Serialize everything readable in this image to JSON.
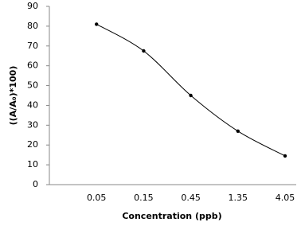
{
  "chart_data": {
    "type": "line",
    "smooth": true,
    "x_label": "Concentration (ppb)",
    "y_label": "((A/A₀)*100)",
    "categories": [
      "0.05",
      "0.15",
      "0.45",
      "1.35",
      "4.05"
    ],
    "series": [
      {
        "color": "#000000",
        "values": [
          81,
          67.5,
          45,
          27,
          14.5
        ]
      }
    ],
    "ylim": [
      0,
      90
    ],
    "yticks": [
      0,
      10,
      20,
      30,
      40,
      50,
      60,
      70,
      80,
      90
    ],
    "grid": false
  }
}
